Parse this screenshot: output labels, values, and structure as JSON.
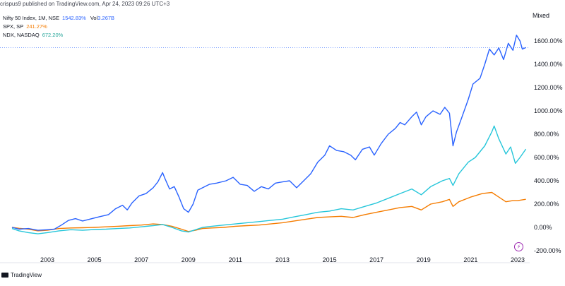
{
  "header": {
    "published": "crispus9 published on TradingView.com, Apr 24, 2023 09:26 UTC+3"
  },
  "legend": [
    {
      "name": "Nifty 50 Index, 1M, NSE",
      "value": "1542.83%",
      "extra_label": "Vol",
      "extra_value": "3.267B",
      "color": "#2962ff"
    },
    {
      "name": "SPX, SP",
      "value": "241.27%",
      "color": "#f57c00"
    },
    {
      "name": "NDX, NASDAQ",
      "value": "672.20%",
      "color": "#26c6da"
    }
  ],
  "scale_mode": "Mixed",
  "brand": "TradingView",
  "icons": {
    "bolt": "lightning-icon",
    "logo": "tradingview-logo-icon"
  },
  "chart_data": {
    "type": "line",
    "xlabel": "",
    "ylabel": "",
    "x_ticks": [
      "2003",
      "2005",
      "2007",
      "2009",
      "2011",
      "2013",
      "2015",
      "2017",
      "2019",
      "2021",
      "2023"
    ],
    "y_ticks": [
      "1600.00%",
      "1400.00%",
      "1200.00%",
      "1000.00%",
      "800.00%",
      "600.00%",
      "400.00%",
      "200.00%",
      "0.00%",
      "-200.00%"
    ],
    "y_tick_values": [
      1600,
      1400,
      1200,
      1000,
      800,
      600,
      400,
      200,
      0,
      -200
    ],
    "ylim": [
      -200,
      1650
    ],
    "xlim": [
      2001.5,
      2023.7
    ],
    "grid": false,
    "crosshair_value": 1542.83,
    "series": [
      {
        "name": "Nifty 50 Index, 1M, NSE",
        "color": "#2962ff",
        "points": [
          [
            2001.5,
            0
          ],
          [
            2001.8,
            -15
          ],
          [
            2002.2,
            -10
          ],
          [
            2002.6,
            -25
          ],
          [
            2003.0,
            -20
          ],
          [
            2003.3,
            -15
          ],
          [
            2003.6,
            20
          ],
          [
            2003.9,
            60
          ],
          [
            2004.2,
            75
          ],
          [
            2004.5,
            55
          ],
          [
            2004.8,
            70
          ],
          [
            2005.2,
            90
          ],
          [
            2005.6,
            110
          ],
          [
            2005.9,
            160
          ],
          [
            2006.2,
            190
          ],
          [
            2006.4,
            150
          ],
          [
            2006.6,
            210
          ],
          [
            2006.9,
            270
          ],
          [
            2007.2,
            290
          ],
          [
            2007.5,
            340
          ],
          [
            2007.7,
            390
          ],
          [
            2007.9,
            470
          ],
          [
            2008.0,
            420
          ],
          [
            2008.2,
            330
          ],
          [
            2008.4,
            350
          ],
          [
            2008.6,
            260
          ],
          [
            2008.8,
            160
          ],
          [
            2009.0,
            130
          ],
          [
            2009.2,
            200
          ],
          [
            2009.4,
            320
          ],
          [
            2009.6,
            340
          ],
          [
            2009.9,
            370
          ],
          [
            2010.2,
            380
          ],
          [
            2010.6,
            400
          ],
          [
            2010.9,
            430
          ],
          [
            2011.2,
            370
          ],
          [
            2011.5,
            360
          ],
          [
            2011.8,
            310
          ],
          [
            2012.1,
            350
          ],
          [
            2012.4,
            330
          ],
          [
            2012.7,
            380
          ],
          [
            2013.0,
            390
          ],
          [
            2013.3,
            400
          ],
          [
            2013.6,
            340
          ],
          [
            2013.9,
            400
          ],
          [
            2014.2,
            460
          ],
          [
            2014.5,
            560
          ],
          [
            2014.8,
            620
          ],
          [
            2015.0,
            700
          ],
          [
            2015.3,
            660
          ],
          [
            2015.6,
            650
          ],
          [
            2015.9,
            620
          ],
          [
            2016.1,
            580
          ],
          [
            2016.4,
            670
          ],
          [
            2016.7,
            690
          ],
          [
            2016.9,
            620
          ],
          [
            2017.2,
            720
          ],
          [
            2017.5,
            800
          ],
          [
            2017.8,
            850
          ],
          [
            2018.0,
            900
          ],
          [
            2018.2,
            880
          ],
          [
            2018.5,
            950
          ],
          [
            2018.7,
            990
          ],
          [
            2018.9,
            880
          ],
          [
            2019.1,
            950
          ],
          [
            2019.4,
            1000
          ],
          [
            2019.7,
            970
          ],
          [
            2019.9,
            1030
          ],
          [
            2020.1,
            980
          ],
          [
            2020.25,
            700
          ],
          [
            2020.4,
            820
          ],
          [
            2020.6,
            930
          ],
          [
            2020.9,
            1100
          ],
          [
            2021.1,
            1230
          ],
          [
            2021.4,
            1280
          ],
          [
            2021.6,
            1400
          ],
          [
            2021.8,
            1530
          ],
          [
            2022.0,
            1480
          ],
          [
            2022.2,
            1540
          ],
          [
            2022.4,
            1440
          ],
          [
            2022.6,
            1580
          ],
          [
            2022.8,
            1520
          ],
          [
            2022.95,
            1650
          ],
          [
            2023.1,
            1600
          ],
          [
            2023.2,
            1530
          ],
          [
            2023.35,
            1542.83
          ]
        ]
      },
      {
        "name": "SPX, SP",
        "color": "#f57c00",
        "points": [
          [
            2001.5,
            0
          ],
          [
            2001.8,
            -8
          ],
          [
            2002.2,
            -15
          ],
          [
            2002.6,
            -30
          ],
          [
            2003.0,
            -25
          ],
          [
            2003.5,
            -10
          ],
          [
            2004.0,
            -5
          ],
          [
            2004.5,
            -3
          ],
          [
            2005.0,
            0
          ],
          [
            2005.5,
            5
          ],
          [
            2006.0,
            10
          ],
          [
            2006.5,
            15
          ],
          [
            2007.0,
            20
          ],
          [
            2007.5,
            30
          ],
          [
            2007.9,
            25
          ],
          [
            2008.3,
            10
          ],
          [
            2008.7,
            -15
          ],
          [
            2009.0,
            -35
          ],
          [
            2009.3,
            -25
          ],
          [
            2009.6,
            -10
          ],
          [
            2010.0,
            -5
          ],
          [
            2010.5,
            0
          ],
          [
            2011.0,
            10
          ],
          [
            2011.5,
            15
          ],
          [
            2012.0,
            20
          ],
          [
            2012.5,
            30
          ],
          [
            2013.0,
            40
          ],
          [
            2013.5,
            55
          ],
          [
            2014.0,
            70
          ],
          [
            2014.5,
            85
          ],
          [
            2015.0,
            90
          ],
          [
            2015.5,
            95
          ],
          [
            2016.0,
            85
          ],
          [
            2016.5,
            110
          ],
          [
            2017.0,
            130
          ],
          [
            2017.5,
            150
          ],
          [
            2018.0,
            170
          ],
          [
            2018.5,
            180
          ],
          [
            2018.9,
            150
          ],
          [
            2019.3,
            200
          ],
          [
            2019.8,
            220
          ],
          [
            2020.1,
            240
          ],
          [
            2020.25,
            180
          ],
          [
            2020.5,
            220
          ],
          [
            2021.0,
            260
          ],
          [
            2021.5,
            290
          ],
          [
            2021.9,
            300
          ],
          [
            2022.2,
            260
          ],
          [
            2022.5,
            220
          ],
          [
            2022.8,
            230
          ],
          [
            2023.0,
            230
          ],
          [
            2023.35,
            241.27
          ]
        ]
      },
      {
        "name": "NDX, NASDAQ",
        "color": "#26c6da",
        "points": [
          [
            2001.5,
            -10
          ],
          [
            2001.8,
            -30
          ],
          [
            2002.2,
            -45
          ],
          [
            2002.6,
            -55
          ],
          [
            2003.0,
            -45
          ],
          [
            2003.5,
            -30
          ],
          [
            2004.0,
            -20
          ],
          [
            2004.5,
            -25
          ],
          [
            2005.0,
            -18
          ],
          [
            2005.5,
            -15
          ],
          [
            2006.0,
            -10
          ],
          [
            2006.5,
            -5
          ],
          [
            2007.0,
            5
          ],
          [
            2007.5,
            15
          ],
          [
            2007.9,
            25
          ],
          [
            2008.3,
            0
          ],
          [
            2008.7,
            -30
          ],
          [
            2009.0,
            -40
          ],
          [
            2009.3,
            -20
          ],
          [
            2009.6,
            0
          ],
          [
            2010.0,
            10
          ],
          [
            2010.5,
            20
          ],
          [
            2011.0,
            30
          ],
          [
            2011.5,
            40
          ],
          [
            2012.0,
            50
          ],
          [
            2012.5,
            60
          ],
          [
            2013.0,
            70
          ],
          [
            2013.5,
            90
          ],
          [
            2014.0,
            110
          ],
          [
            2014.5,
            130
          ],
          [
            2015.0,
            140
          ],
          [
            2015.5,
            160
          ],
          [
            2016.0,
            150
          ],
          [
            2016.5,
            180
          ],
          [
            2017.0,
            210
          ],
          [
            2017.5,
            250
          ],
          [
            2018.0,
            290
          ],
          [
            2018.5,
            330
          ],
          [
            2018.9,
            280
          ],
          [
            2019.3,
            350
          ],
          [
            2019.8,
            400
          ],
          [
            2020.1,
            420
          ],
          [
            2020.25,
            360
          ],
          [
            2020.5,
            460
          ],
          [
            2020.9,
            560
          ],
          [
            2021.2,
            600
          ],
          [
            2021.6,
            700
          ],
          [
            2021.9,
            820
          ],
          [
            2022.0,
            870
          ],
          [
            2022.2,
            760
          ],
          [
            2022.5,
            630
          ],
          [
            2022.7,
            690
          ],
          [
            2022.9,
            550
          ],
          [
            2023.1,
            600
          ],
          [
            2023.35,
            672.2
          ]
        ]
      }
    ]
  }
}
